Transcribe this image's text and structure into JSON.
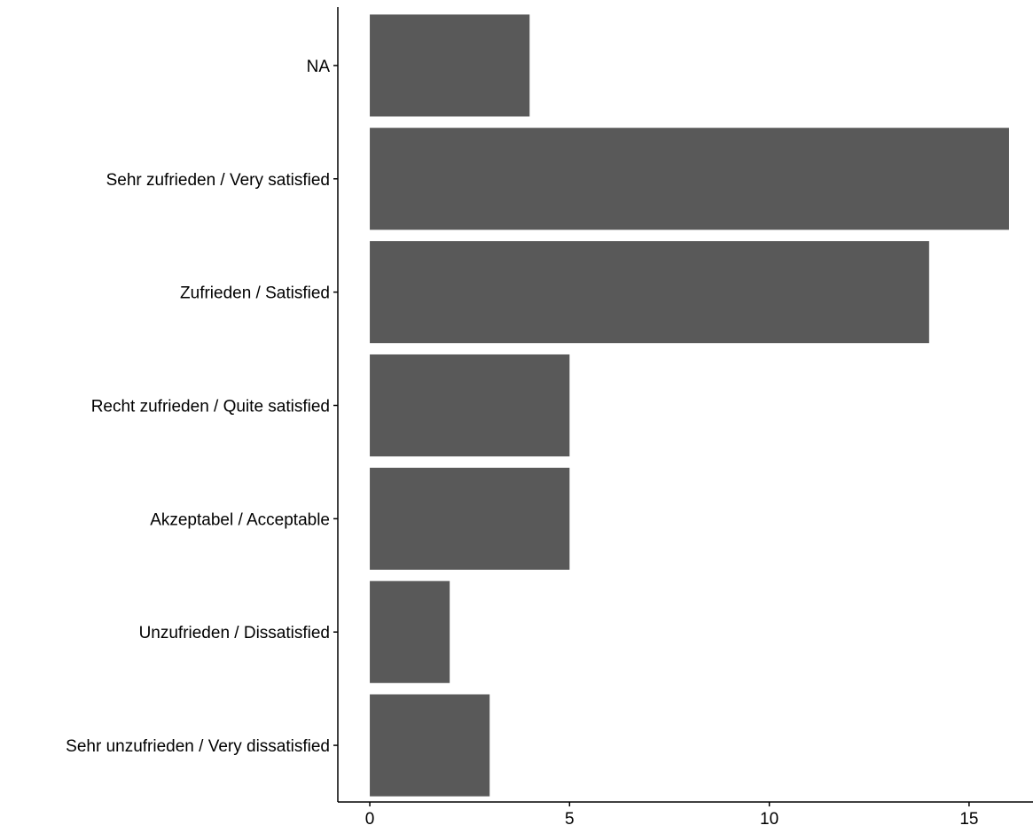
{
  "chart_data": {
    "type": "bar",
    "orientation": "horizontal",
    "categories": [
      "NA",
      "Sehr zufrieden / Very satisfied",
      "Zufrieden / Satisfied",
      "Recht zufrieden / Quite satisfied",
      "Akzeptabel / Acceptable",
      "Unzufrieden / Dissatisfied",
      "Sehr unzufrieden / Very dissatisfied"
    ],
    "values": [
      4,
      16,
      14,
      5,
      5,
      2,
      3
    ],
    "x_ticks": [
      "0",
      "5",
      "10",
      "15"
    ],
    "xlim": [
      -0.8,
      16.6
    ],
    "title": "",
    "xlabel": "",
    "ylabel": "",
    "grid": false,
    "legend": "none",
    "bar_color": "#595959",
    "axis_color": "#000000"
  }
}
